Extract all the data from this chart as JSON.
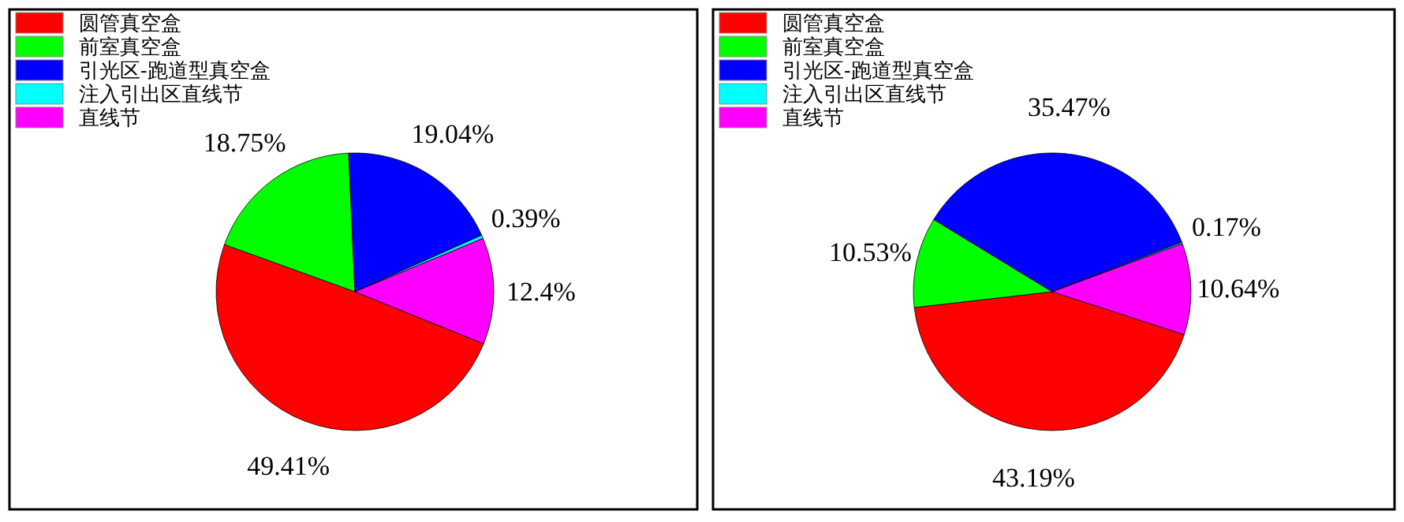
{
  "chart_data": [
    {
      "type": "pie",
      "categories": [
        "圆管真空盒",
        "前室真空盒",
        "引光区-跑道型真空盒",
        "注入引出区直线节",
        "直线节"
      ],
      "values": [
        49.41,
        18.75,
        19.04,
        0.39,
        12.4
      ],
      "value_labels": [
        "49.41%",
        "18.75%",
        "19.04%",
        "0.39%",
        "12.4%"
      ],
      "colors": [
        "#ff0000",
        "#00ff00",
        "#0000ff",
        "#00ffff",
        "#ff00ff"
      ],
      "legend": "top left"
    },
    {
      "type": "pie",
      "categories": [
        "圆管真空盒",
        "前室真空盒",
        "引光区-跑道型真空盒",
        "注入引出区直线节",
        "直线节"
      ],
      "values": [
        43.19,
        10.53,
        35.47,
        0.17,
        10.64
      ],
      "value_labels": [
        "43.19%",
        "10.53%",
        "35.47%",
        "0.17%",
        "10.64%"
      ],
      "colors": [
        "#ff0000",
        "#00ff00",
        "#0000ff",
        "#00ffff",
        "#ff00ff"
      ],
      "legend": "top left"
    }
  ]
}
